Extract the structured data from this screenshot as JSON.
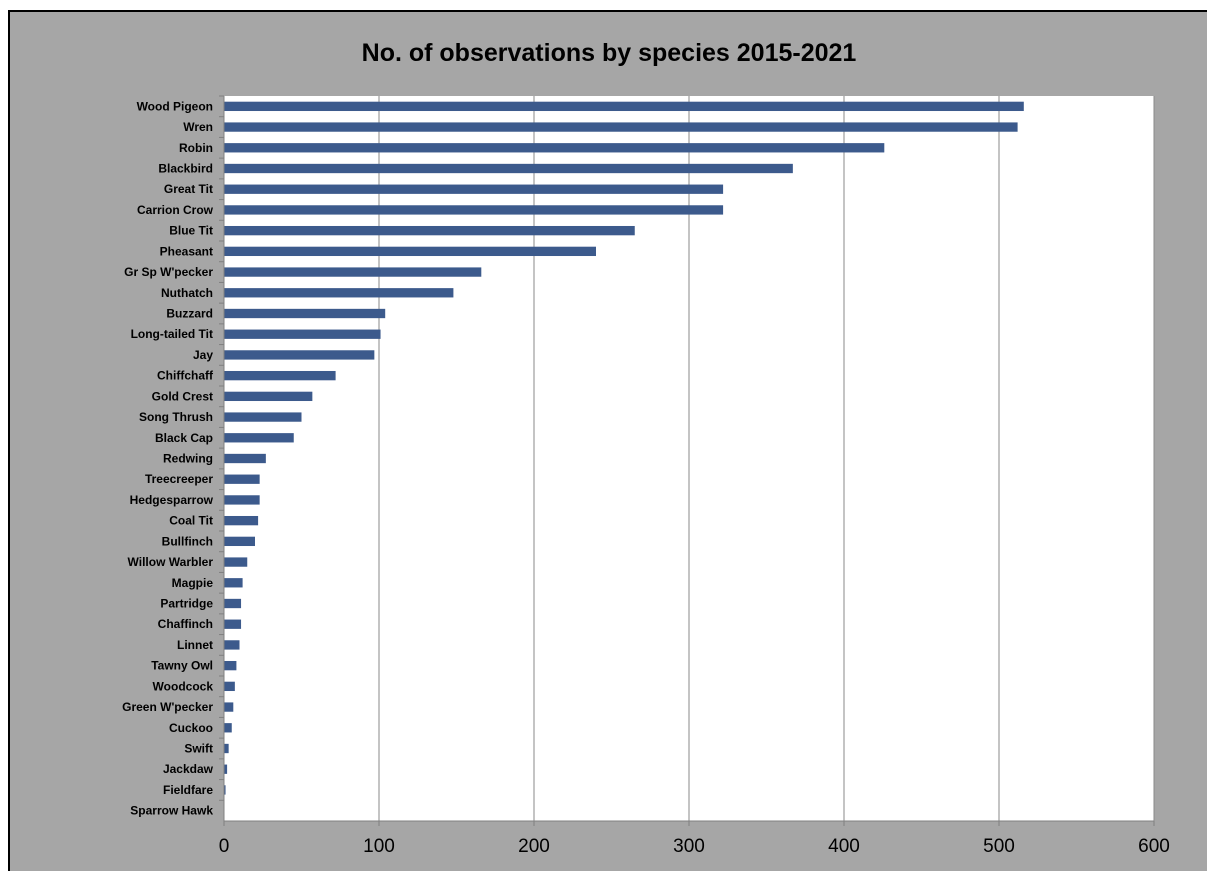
{
  "chart_data": {
    "type": "bar",
    "orientation": "horizontal",
    "title": "No. of observations by species 2015-2021",
    "xlabel": "",
    "ylabel": "",
    "xlim": [
      0,
      600
    ],
    "x_ticks": [
      0,
      100,
      200,
      300,
      400,
      500,
      600
    ],
    "grid": "vertical major gridlines",
    "legend": "none",
    "bar_color": "#3c5a8c",
    "plot_background": "#ffffff",
    "chart_background": "#a6a6a6",
    "categories": [
      "Wood Pigeon",
      "Wren",
      "Robin",
      "Blackbird",
      "Great Tit",
      "Carrion Crow",
      "Blue Tit",
      "Pheasant",
      "Gr Sp W'pecker",
      "Nuthatch",
      "Buzzard",
      "Long-tailed Tit",
      "Jay",
      "Chiffchaff",
      "Gold Crest",
      "Song Thrush",
      "Black Cap",
      "Redwing",
      "Treecreeper",
      "Hedgesparrow",
      "Coal Tit",
      "Bullfinch",
      "Willow Warbler",
      "Magpie",
      "Partridge",
      "Chaffinch",
      "Linnet",
      "Tawny Owl",
      "Woodcock",
      "Green W'pecker",
      "Cuckoo",
      "Swift",
      "Jackdaw",
      "Fieldfare",
      "Sparrow Hawk"
    ],
    "values": [
      516,
      512,
      426,
      367,
      322,
      322,
      265,
      240,
      166,
      148,
      104,
      101,
      97,
      72,
      57,
      50,
      45,
      27,
      23,
      23,
      22,
      20,
      15,
      12,
      11,
      11,
      10,
      8,
      7,
      6,
      5,
      3,
      2,
      1,
      0
    ]
  }
}
